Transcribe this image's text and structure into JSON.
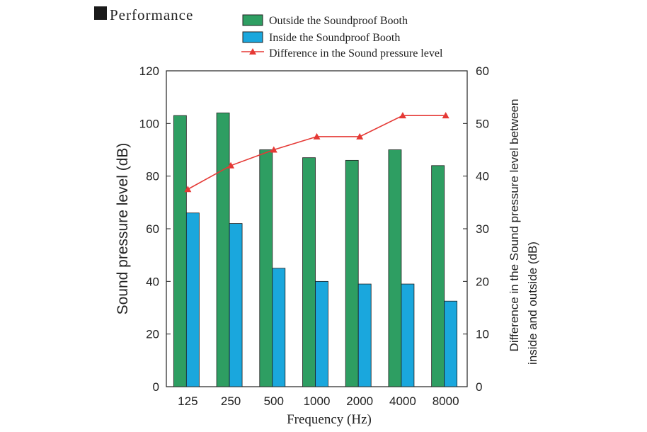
{
  "header": {
    "title": "Performance"
  },
  "legend": {
    "items": [
      {
        "label": "Outside the Soundproof Booth"
      },
      {
        "label": "Inside the Soundproof Booth"
      },
      {
        "label": "Difference in the Sound pressure level"
      }
    ]
  },
  "chart_data": {
    "type": "bar",
    "title": "Performance",
    "categories": [
      "125",
      "250",
      "500",
      "1000",
      "2000",
      "4000",
      "8000"
    ],
    "xlabel": "Frequency (Hz)",
    "ylabel": "Sound pressure level (dB)",
    "ylabel_right": [
      "Difference in the Sound pressure level between",
      "inside and outside (dB)"
    ],
    "ylim": [
      0,
      120
    ],
    "ylim_right": [
      0,
      60
    ],
    "yticks": [
      0,
      20,
      40,
      60,
      80,
      100,
      120
    ],
    "yticks_right": [
      0,
      10,
      20,
      30,
      40,
      50,
      60
    ],
    "series": [
      {
        "name": "Outside the Soundproof Booth",
        "type": "bar",
        "axis": "left",
        "color": "#2e9e62",
        "values": [
          103,
          104,
          90,
          87,
          86,
          90,
          84
        ]
      },
      {
        "name": "Inside the Soundproof Booth",
        "type": "bar",
        "axis": "left",
        "color": "#1aa7dd",
        "values": [
          66,
          62,
          45,
          40,
          39,
          39,
          32.5
        ]
      },
      {
        "name": "Difference in the Sound pressure level",
        "type": "line",
        "axis": "right",
        "color": "#e53935",
        "marker": "triangle",
        "values": [
          37.5,
          42,
          45,
          47.5,
          47.5,
          51.5,
          51.5
        ]
      }
    ],
    "grid": false,
    "legend_position": "top-center"
  }
}
